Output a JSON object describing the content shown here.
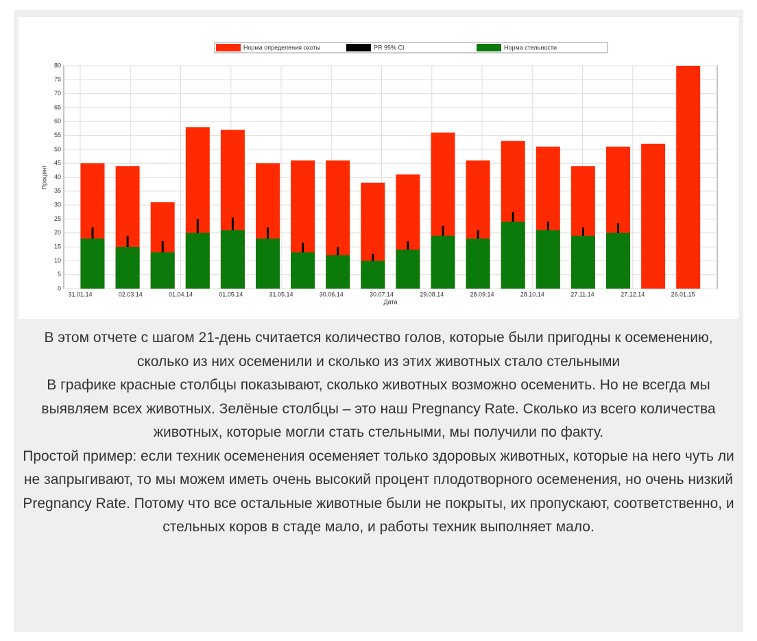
{
  "chart_data": {
    "type": "bar",
    "x_label": "Дата",
    "y_label": "Процент",
    "xtick_labels": [
      "31.01.14",
      "02.03.14",
      "01.04.14",
      "01.05.14",
      "31.05.14",
      "30.06.14",
      "30.07.14",
      "29.08.14",
      "28.09.14",
      "28.10.14",
      "27.11.14",
      "27.12.14",
      "26.01.15"
    ],
    "series": [
      {
        "name": "Норма определения охоты",
        "color": "#ff2a00",
        "values": [
          45,
          44,
          31,
          58,
          57,
          45,
          46,
          46,
          38,
          41,
          56,
          46,
          53,
          51,
          44,
          51,
          52,
          80
        ]
      },
      {
        "name": "PR 95% CI",
        "color": "#000000",
        "values": [
          22,
          19,
          17,
          25,
          25.5,
          22,
          16.5,
          15,
          12.5,
          17,
          22.5,
          21,
          27.5,
          24,
          22,
          23.5,
          null,
          null
        ]
      },
      {
        "name": "Норма стельности",
        "color": "#0b7a0b",
        "values": [
          18,
          15,
          13,
          20,
          21,
          18,
          13,
          12,
          10,
          14,
          19,
          18,
          24,
          21,
          19,
          20,
          null,
          null
        ]
      }
    ],
    "ylim": [
      0,
      80
    ],
    "yticks": [
      0,
      5,
      10,
      15,
      20,
      25,
      30,
      35,
      40,
      45,
      50,
      55,
      60,
      65,
      70,
      75,
      80
    ],
    "grid": true
  },
  "text": [
    "В этом отчете с шагом 21-день считается количество голов, которые были пригодны к осеменению, сколько из них осеменили и сколько из этих животных стало стельными",
    "В графике красные столбцы показывают, сколько животных возможно осеменить. Но не всегда мы выявляем всех животных. Зелёные столбцы – это наш Pregnancy Rate. Сколько из всего количества животных, которые могли стать стельными, мы получили по факту.",
    "Простой пример: если техник осеменения осеменяет только здоровых животных, которые на него чуть ли не запрыгивают, то мы можем иметь очень высокий процент плодотворного осеменения, но очень низкий Pregnancy Rate. Потому что все остальные животные были не покрыты, их пропускают, соответственно, и стельных коров в стаде мало, и работы техник выполняет мало."
  ]
}
